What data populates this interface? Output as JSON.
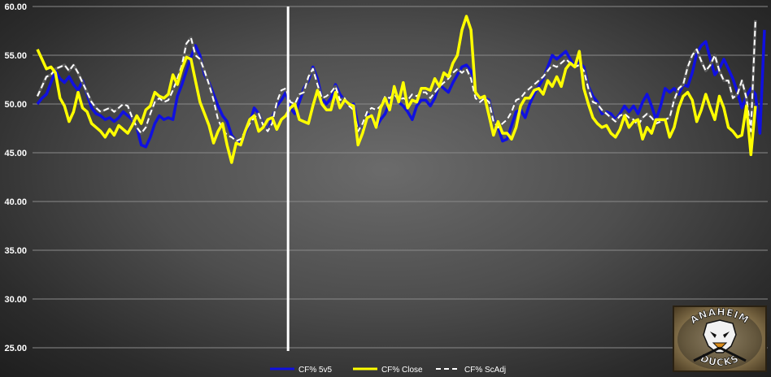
{
  "chart_data": {
    "type": "line",
    "title": "",
    "xlabel": "",
    "ylabel": "",
    "ylim": [
      25,
      60
    ],
    "yticks": [
      "25.00",
      "30.00",
      "35.00",
      "40.00",
      "45.00",
      "50.00",
      "55.00",
      "60.00"
    ],
    "grid": true,
    "legend_position": "bottom-center",
    "divider_index": 55,
    "series": [
      {
        "name": "CF% 5v5",
        "color": "#1010e0",
        "style": "solid",
        "values": [
          50.0,
          50.6,
          51.0,
          52.2,
          53.4,
          52.6,
          52.2,
          52.8,
          52.0,
          51.4,
          52.4,
          51.0,
          49.6,
          49.0,
          48.8,
          48.4,
          48.6,
          48.2,
          48.6,
          49.2,
          48.8,
          48.4,
          47.6,
          45.8,
          45.6,
          46.6,
          48.0,
          48.8,
          48.4,
          48.6,
          48.4,
          50.8,
          52.0,
          53.4,
          54.8,
          56.0,
          55.0,
          53.0,
          52.2,
          51.0,
          49.8,
          48.8,
          48.2,
          46.8,
          46.2,
          46.0,
          47.0,
          48.0,
          49.6,
          49.0,
          48.0,
          47.2,
          48.6,
          49.8,
          50.4,
          51.2,
          49.6,
          49.0,
          50.2,
          51.6,
          52.4,
          53.8,
          52.6,
          50.6,
          50.0,
          50.6,
          52.0,
          51.0,
          50.4,
          49.8,
          50.0,
          47.8,
          47.6,
          49.0,
          48.6,
          47.6,
          48.4,
          49.0,
          50.2,
          51.8,
          50.2,
          49.8,
          49.2,
          48.4,
          49.8,
          50.4,
          50.4,
          49.8,
          50.6,
          52.0,
          51.6,
          51.2,
          52.2,
          53.0,
          53.8,
          54.0,
          53.4,
          51.0,
          50.4,
          50.6,
          50.4,
          48.4,
          47.6,
          46.2,
          46.4,
          47.8,
          49.2,
          49.4,
          48.6,
          50.0,
          51.0,
          51.8,
          52.6,
          53.8,
          55.0,
          54.6,
          55.0,
          55.4,
          54.6,
          53.8,
          54.2,
          53.8,
          51.8,
          50.8,
          50.2,
          49.0,
          49.2,
          49.0,
          48.4,
          49.0,
          49.8,
          49.2,
          49.8,
          49.0,
          50.2,
          51.0,
          49.8,
          48.4,
          49.8,
          51.6,
          51.2,
          51.6,
          51.0,
          52.0,
          51.8,
          53.2,
          55.2,
          56.0,
          56.4,
          54.6,
          53.0,
          53.6,
          54.6,
          53.6,
          52.6,
          51.2,
          49.6,
          50.8,
          51.6,
          51.0,
          47.0,
          57.6
        ]
      },
      {
        "name": "CF% Close",
        "color": "#ffff00",
        "style": "solid",
        "values": [
          55.6,
          54.6,
          53.6,
          53.8,
          53.2,
          50.6,
          49.8,
          48.2,
          49.2,
          51.2,
          49.6,
          49.2,
          48.0,
          47.6,
          47.2,
          46.6,
          47.4,
          46.8,
          47.8,
          47.4,
          47.0,
          47.8,
          48.8,
          48.0,
          49.4,
          49.8,
          51.2,
          50.8,
          50.6,
          51.0,
          53.0,
          52.0,
          53.6,
          54.8,
          54.6,
          52.4,
          50.2,
          49.0,
          47.8,
          46.0,
          47.2,
          48.0,
          45.8,
          44.0,
          46.0,
          45.8,
          47.2,
          48.4,
          48.8,
          47.2,
          47.6,
          48.4,
          48.6,
          47.4,
          48.4,
          48.8,
          49.6,
          50.0,
          48.4,
          48.2,
          48.0,
          49.8,
          51.4,
          50.0,
          49.4,
          49.4,
          51.2,
          49.6,
          50.4,
          50.0,
          49.8,
          45.8,
          47.0,
          48.6,
          48.8,
          47.6,
          49.6,
          50.6,
          49.4,
          51.8,
          50.2,
          52.2,
          49.6,
          50.4,
          50.2,
          51.6,
          51.6,
          51.4,
          52.6,
          51.8,
          53.2,
          52.8,
          54.2,
          55.0,
          57.6,
          59.0,
          57.6,
          51.2,
          50.6,
          50.8,
          48.8,
          46.8,
          48.2,
          47.0,
          47.0,
          46.4,
          47.6,
          49.8,
          50.6,
          50.6,
          51.4,
          51.6,
          51.0,
          52.4,
          51.8,
          52.8,
          51.8,
          53.6,
          54.2,
          53.8,
          55.4,
          51.6,
          50.0,
          48.6,
          48.0,
          47.6,
          47.8,
          47.0,
          46.6,
          47.4,
          48.8,
          47.6,
          48.2,
          48.4,
          46.4,
          47.6,
          47.0,
          48.4,
          48.4,
          48.4,
          46.6,
          47.6,
          49.6,
          50.8,
          51.2,
          50.4,
          48.2,
          49.4,
          51.0,
          49.6,
          48.4,
          50.8,
          49.6,
          47.6,
          47.2,
          46.6,
          46.8,
          49.8,
          44.8,
          49.8
        ]
      },
      {
        "name": "CF% ScAdj",
        "color": "#ffffff",
        "style": "dashed",
        "values": [
          50.8,
          51.8,
          52.8,
          53.0,
          53.6,
          53.8,
          54.0,
          53.4,
          54.0,
          53.2,
          52.2,
          51.2,
          50.2,
          49.6,
          49.2,
          49.4,
          49.6,
          49.2,
          49.6,
          50.0,
          49.8,
          48.6,
          47.6,
          47.0,
          47.6,
          49.0,
          50.2,
          50.6,
          50.2,
          50.4,
          51.4,
          52.6,
          54.0,
          56.2,
          56.8,
          55.0,
          54.6,
          53.4,
          52.0,
          50.4,
          48.4,
          47.4,
          46.8,
          46.6,
          46.2,
          46.4,
          47.2,
          48.0,
          48.6,
          49.0,
          47.8,
          47.2,
          48.0,
          50.2,
          51.4,
          51.6,
          50.2,
          50.0,
          51.0,
          51.2,
          52.8,
          53.6,
          52.0,
          50.6,
          50.8,
          51.2,
          51.8,
          50.4,
          50.6,
          49.8,
          49.4,
          47.2,
          48.0,
          49.2,
          49.6,
          49.4,
          49.8,
          50.8,
          50.6,
          51.0,
          50.4,
          50.6,
          50.4,
          51.0,
          50.8,
          51.2,
          51.2,
          50.6,
          51.2,
          51.8,
          52.2,
          52.6,
          53.2,
          53.6,
          53.2,
          53.6,
          52.6,
          50.6,
          50.2,
          50.6,
          50.2,
          48.2,
          47.6,
          48.0,
          48.4,
          49.2,
          50.4,
          50.6,
          51.2,
          51.6,
          52.0,
          52.4,
          52.8,
          53.4,
          54.0,
          53.8,
          54.2,
          54.6,
          54.2,
          53.8,
          54.0,
          53.4,
          51.6,
          50.2,
          50.0,
          49.4,
          49.0,
          48.6,
          48.2,
          48.8,
          49.0,
          48.6,
          48.4,
          47.8,
          48.6,
          49.0,
          48.6,
          48.0,
          48.2,
          48.4,
          48.6,
          50.4,
          51.6,
          52.0,
          53.8,
          55.0,
          55.6,
          54.4,
          53.4,
          54.0,
          55.0,
          53.4,
          52.4,
          52.4,
          50.6,
          51.0,
          52.4,
          50.6,
          47.2,
          58.6
        ]
      }
    ]
  },
  "logo": {
    "top_text": "ANAHEIM",
    "bottom_text": "DUCKS"
  }
}
